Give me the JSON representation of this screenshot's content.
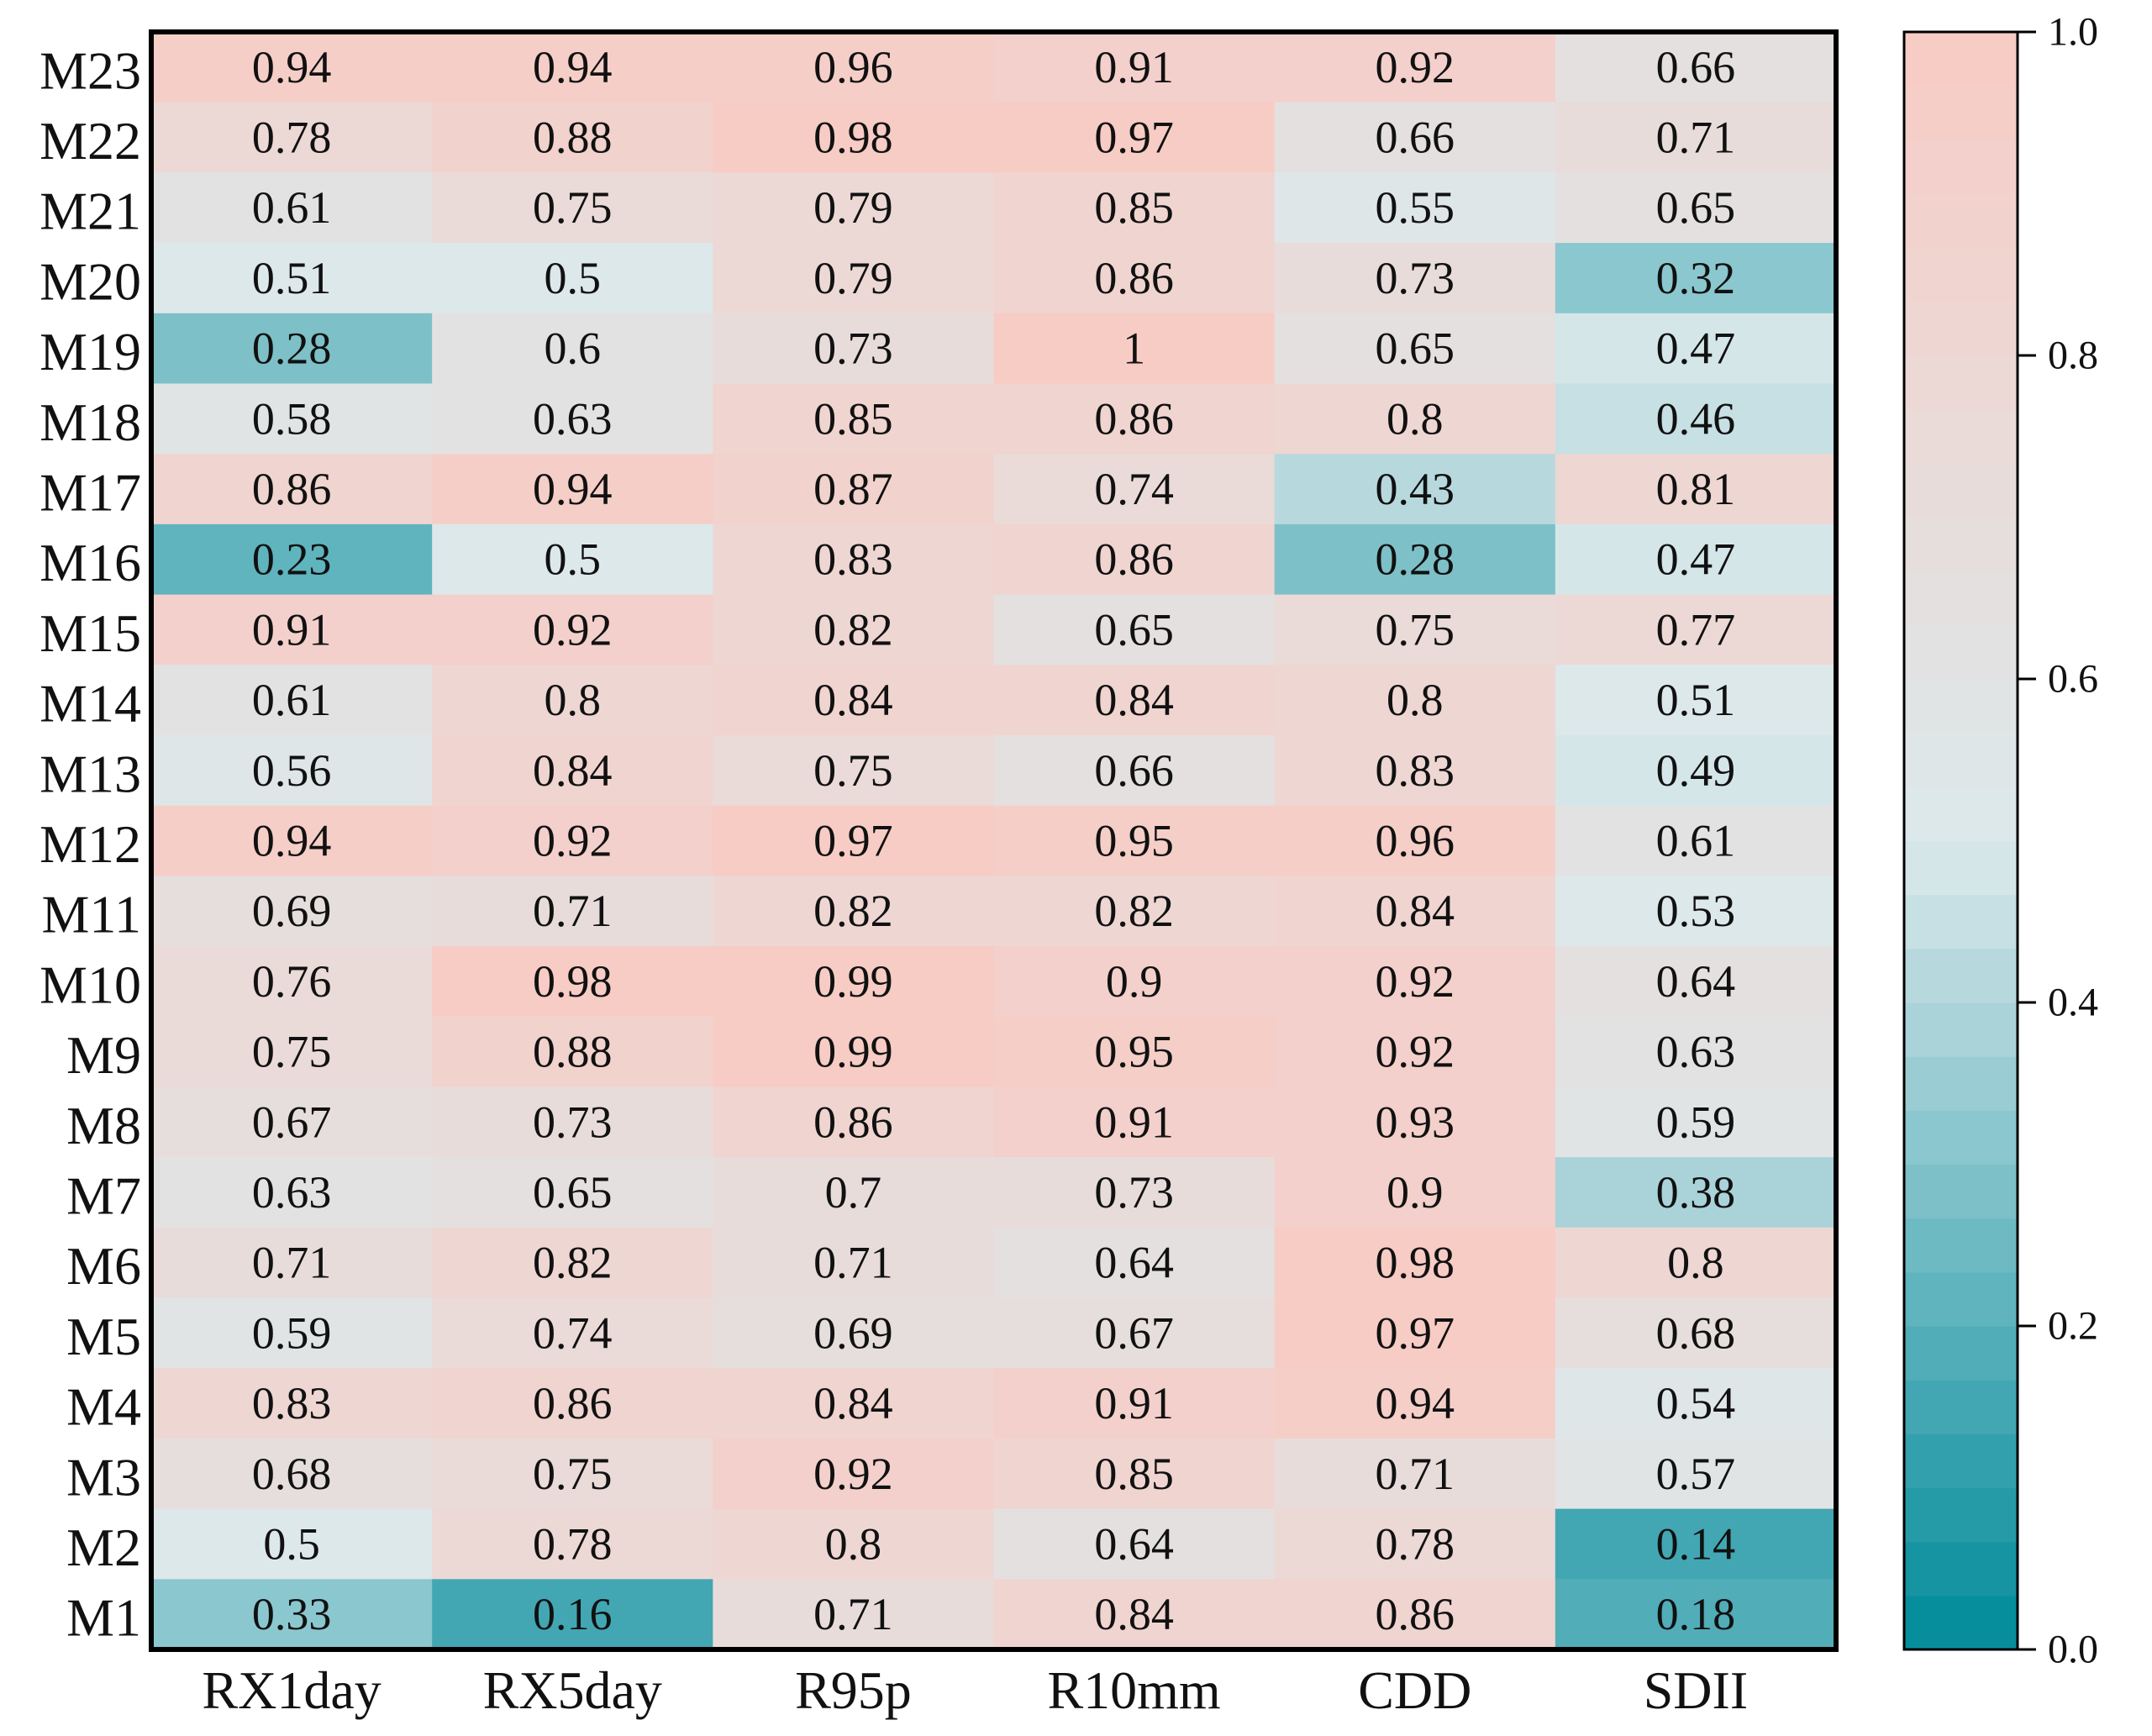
{
  "chart_data": {
    "type": "heatmap",
    "title": "",
    "xlabel": "",
    "ylabel": "",
    "columns": [
      "RX1day",
      "RX5day",
      "R95p",
      "R10mm",
      "CDD",
      "SDII"
    ],
    "rows": [
      "M23",
      "M22",
      "M21",
      "M20",
      "M19",
      "M18",
      "M17",
      "M16",
      "M15",
      "M14",
      "M13",
      "M12",
      "M11",
      "M10",
      "M9",
      "M8",
      "M7",
      "M6",
      "M5",
      "M4",
      "M3",
      "M2",
      "M1"
    ],
    "values": [
      [
        "0.94",
        "0.94",
        "0.96",
        "0.91",
        "0.92",
        "0.66"
      ],
      [
        "0.78",
        "0.88",
        "0.98",
        "0.97",
        "0.66",
        "0.71"
      ],
      [
        "0.61",
        "0.75",
        "0.79",
        "0.85",
        "0.55",
        "0.65"
      ],
      [
        "0.51",
        "0.5",
        "0.79",
        "0.86",
        "0.73",
        "0.32"
      ],
      [
        "0.28",
        "0.6",
        "0.73",
        "1",
        "0.65",
        "0.47"
      ],
      [
        "0.58",
        "0.63",
        "0.85",
        "0.86",
        "0.8",
        "0.46"
      ],
      [
        "0.86",
        "0.94",
        "0.87",
        "0.74",
        "0.43",
        "0.81"
      ],
      [
        "0.23",
        "0.5",
        "0.83",
        "0.86",
        "0.28",
        "0.47"
      ],
      [
        "0.91",
        "0.92",
        "0.82",
        "0.65",
        "0.75",
        "0.77"
      ],
      [
        "0.61",
        "0.8",
        "0.84",
        "0.84",
        "0.8",
        "0.51"
      ],
      [
        "0.56",
        "0.84",
        "0.75",
        "0.66",
        "0.83",
        "0.49"
      ],
      [
        "0.94",
        "0.92",
        "0.97",
        "0.95",
        "0.96",
        "0.61"
      ],
      [
        "0.69",
        "0.71",
        "0.82",
        "0.82",
        "0.84",
        "0.53"
      ],
      [
        "0.76",
        "0.98",
        "0.99",
        "0.9",
        "0.92",
        "0.64"
      ],
      [
        "0.75",
        "0.88",
        "0.99",
        "0.95",
        "0.92",
        "0.63"
      ],
      [
        "0.67",
        "0.73",
        "0.86",
        "0.91",
        "0.93",
        "0.59"
      ],
      [
        "0.63",
        "0.65",
        "0.7",
        "0.73",
        "0.9",
        "0.38"
      ],
      [
        "0.71",
        "0.82",
        "0.71",
        "0.64",
        "0.98",
        "0.8"
      ],
      [
        "0.59",
        "0.74",
        "0.69",
        "0.67",
        "0.97",
        "0.68"
      ],
      [
        "0.83",
        "0.86",
        "0.84",
        "0.91",
        "0.94",
        "0.54"
      ],
      [
        "0.68",
        "0.75",
        "0.92",
        "0.85",
        "0.71",
        "0.57"
      ],
      [
        "0.5",
        "0.78",
        "0.8",
        "0.64",
        "0.78",
        "0.14"
      ],
      [
        "0.33",
        "0.16",
        "0.71",
        "0.84",
        "0.86",
        "0.18"
      ]
    ],
    "colorbar": {
      "range": [
        0.0,
        1.0
      ],
      "ticks": [
        "0.0",
        "0.2",
        "0.4",
        "0.6",
        "0.8",
        "1.0"
      ],
      "levels": 30,
      "colormap": [
        "#008b9a",
        "#dce9ec",
        "#f8cbc4"
      ]
    }
  }
}
